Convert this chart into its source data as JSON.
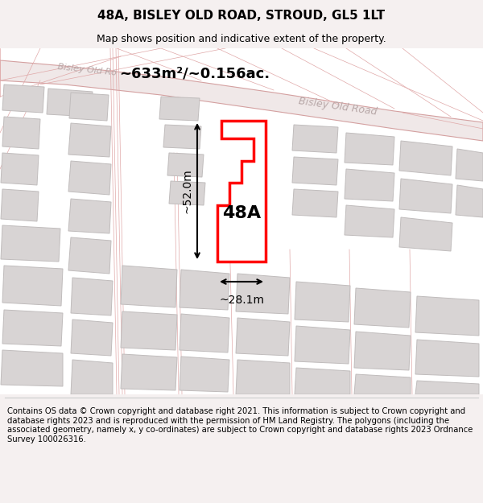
{
  "title": "48A, BISLEY OLD ROAD, STROUD, GL5 1LT",
  "subtitle": "Map shows position and indicative extent of the property.",
  "area_label": "~633m²/~0.156ac.",
  "property_label": "48A",
  "width_label": "~28.1m",
  "height_label": "~52.0m",
  "footer": "Contains OS data © Crown copyright and database right 2021. This information is subject to Crown copyright and database rights 2023 and is reproduced with the permission of HM Land Registry. The polygons (including the associated geometry, namely x, y co-ordinates) are subject to Crown copyright and database rights 2023 Ordnance Survey 100026316.",
  "bg_color": "#f5f0f0",
  "property_outline_color": "#ff0000",
  "building_color": "#d8d4d4",
  "building_edge_color": "#c0bcbc",
  "road_band_color": "#f0e8e8",
  "road_edge_color": "#d4a0a0",
  "road_line_color": "#e0a8a8",
  "road_label_color": "#b8a8a8",
  "title_fontsize": 11,
  "subtitle_fontsize": 9,
  "area_fontsize": 13,
  "property_fontsize": 16,
  "dim_fontsize": 10,
  "footer_fontsize": 7.2
}
